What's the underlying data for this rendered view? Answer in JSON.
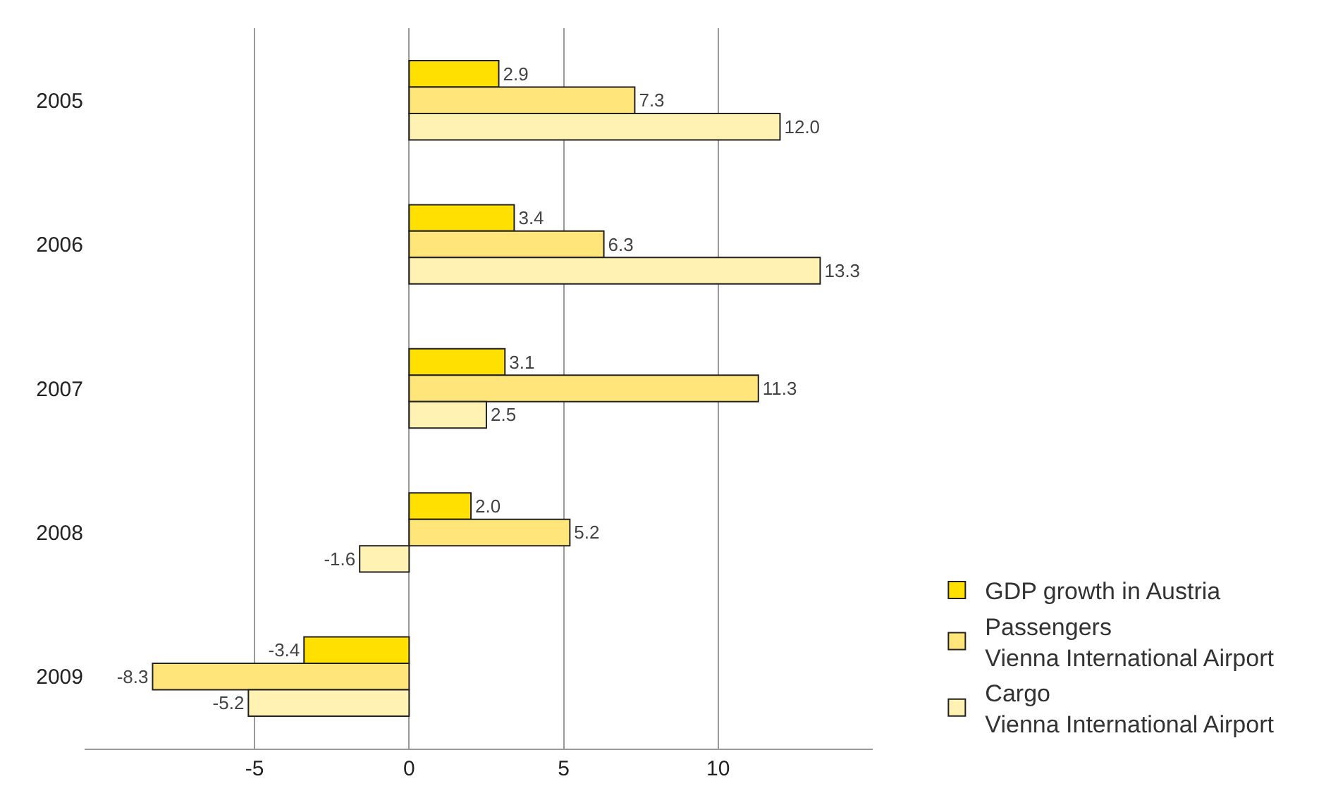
{
  "chart_data": {
    "type": "bar",
    "orientation": "horizontal",
    "categories": [
      "2005",
      "2006",
      "2007",
      "2008",
      "2009"
    ],
    "series": [
      {
        "name": "GDP growth in Austria",
        "color": "#ffe000",
        "values": [
          2.9,
          3.4,
          3.1,
          2.0,
          -3.4
        ],
        "value_labels": [
          "2.9",
          "3.4",
          "3.1",
          "2.0",
          "-3.4"
        ]
      },
      {
        "name": "Passengers\nVienna International Airport",
        "color": "#ffe57a",
        "values": [
          7.3,
          6.3,
          11.3,
          5.2,
          -8.3
        ],
        "value_labels": [
          "7.3",
          "6.3",
          "11.3",
          "5.2",
          "-8.3"
        ]
      },
      {
        "name": "Cargo\nVienna International Airport",
        "color": "#fff2b3",
        "values": [
          12.0,
          13.3,
          2.5,
          -1.6,
          -5.2
        ],
        "value_labels": [
          "12.0",
          "13.3",
          "2.5",
          "-1.6",
          "-5.2"
        ]
      }
    ],
    "xlim": [
      -10.5,
      15
    ],
    "xticks": [
      -5,
      0,
      5,
      10
    ],
    "grid": "x",
    "legend": "bottom right"
  }
}
